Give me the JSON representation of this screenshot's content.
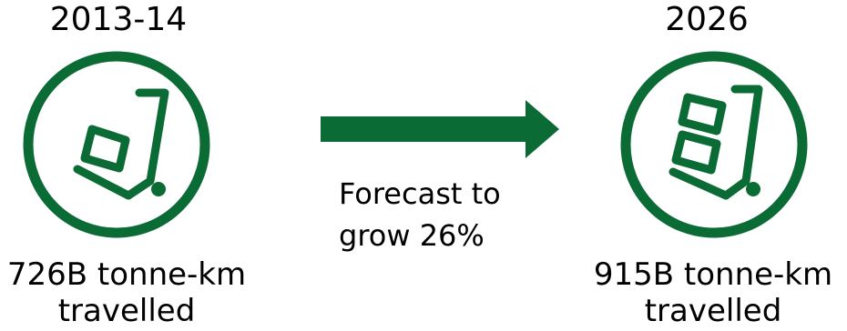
{
  "left": {
    "year": "2013-14",
    "metric_line1": "726B tonne-km",
    "metric_line2": "travelled"
  },
  "right": {
    "year": "2026",
    "metric_line1": "915B tonne-km",
    "metric_line2": "travelled"
  },
  "arrow": {
    "text_line1": "Forecast to",
    "text_line2": "grow 26%"
  },
  "colors": {
    "accent": "#0b6b35"
  },
  "icons": {
    "left": "hand-truck-one-box-icon",
    "right": "hand-truck-two-boxes-icon",
    "arrow": "arrow-right-icon"
  }
}
